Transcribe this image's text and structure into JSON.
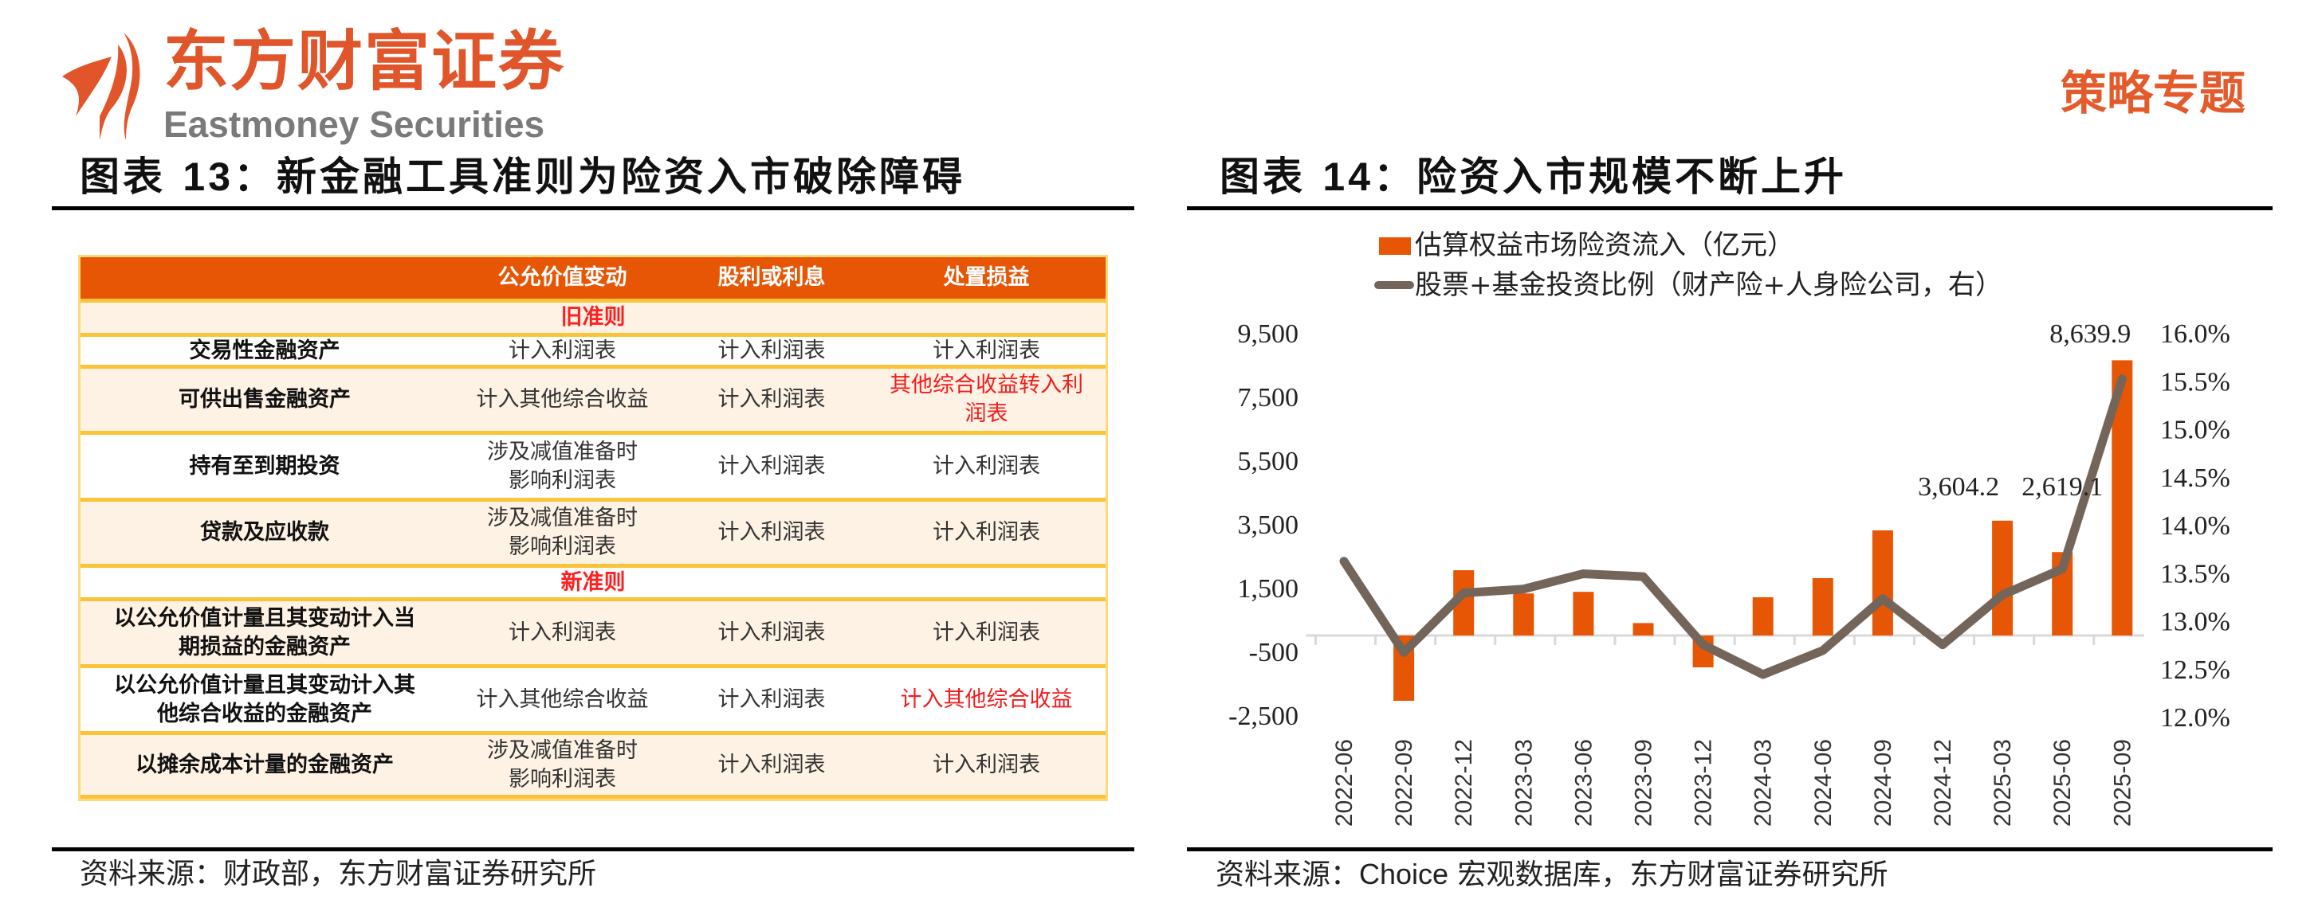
{
  "header": {
    "brand_cn": "东方财富证券",
    "brand_en": "Eastmoney Securities",
    "section_tag": "策略专题",
    "brand_color": "#E0552A"
  },
  "figure13": {
    "title_prefix": "图表 ",
    "title_num": "13",
    "title_text": "：新金融工具准则为险资入市破除障碍",
    "source": "资料来源：财政部，东方财富证券研究所",
    "table": {
      "headers": [
        "",
        "公允价值变动",
        "股利或利息",
        "处置损益"
      ],
      "sections": [
        {
          "label": "旧准则",
          "rows": [
            {
              "asset": "交易性金融资产",
              "fv_change": "计入利润表",
              "dividend_interest": "计入利润表",
              "disposal": "计入利润表",
              "disposal_highlight": false
            },
            {
              "asset": "可供出售金融资产",
              "fv_change": "计入其他综合收益",
              "dividend_interest": "计入利润表",
              "disposal": "其他综合收益转入利润表",
              "disposal_highlight": true
            },
            {
              "asset": "持有至到期投资",
              "fv_change": "涉及减值准备时影响利润表",
              "dividend_interest": "计入利润表",
              "disposal": "计入利润表",
              "disposal_highlight": false
            },
            {
              "asset": "贷款及应收款",
              "fv_change": "涉及减值准备时影响利润表",
              "dividend_interest": "计入利润表",
              "disposal": "计入利润表",
              "disposal_highlight": false
            }
          ]
        },
        {
          "label": "新准则",
          "rows": [
            {
              "asset": "以公允价值计量且其变动计入当期损益的金融资产",
              "fv_change": "计入利润表",
              "dividend_interest": "计入利润表",
              "disposal": "计入利润表",
              "disposal_highlight": false
            },
            {
              "asset": "以公允价值计量且其变动计入其他综合收益的金融资产",
              "fv_change": "计入其他综合收益",
              "dividend_interest": "计入利润表",
              "disposal": "计入其他综合收益",
              "disposal_highlight": true
            },
            {
              "asset": "以摊余成本计量的金融资产",
              "fv_change": "涉及减值准备时影响利润表",
              "dividend_interest": "计入利润表",
              "disposal": "计入利润表",
              "disposal_highlight": false
            }
          ]
        }
      ]
    }
  },
  "figure14": {
    "title_prefix": "图表 ",
    "title_num": "14",
    "title_text": "：险资入市规模不断上升",
    "source_prefix": "资料来源：",
    "source_latin": "Choice",
    "source_rest": " 宏观数据库，东方财富证券研究所"
  },
  "chart_data": {
    "type": "bar",
    "title": "险资入市规模不断上升",
    "categories": [
      "2022-06",
      "2022-09",
      "2022-12",
      "2023-03",
      "2023-06",
      "2023-09",
      "2023-12",
      "2024-03",
      "2024-06",
      "2024-09",
      "2024-12",
      "2025-03",
      "2025-06",
      "2025-09"
    ],
    "series": [
      {
        "name": "估算权益市场险资流入（亿元）",
        "type": "bar",
        "axis": "left",
        "color": "#E65604",
        "values": [
          0,
          -2050,
          2050,
          1320,
          1370,
          390,
          -1000,
          1200,
          1800,
          3300,
          0,
          3604.2,
          2619.1,
          8639.9
        ]
      },
      {
        "name": "股票+基金投资比例（财产险+人身险公司，右）",
        "type": "line",
        "axis": "right",
        "color": "#74655A",
        "values": [
          13.62,
          12.67,
          13.29,
          13.33,
          13.49,
          13.46,
          12.75,
          12.44,
          12.69,
          13.23,
          12.75,
          13.27,
          13.54,
          15.52
        ]
      }
    ],
    "data_labels": [
      {
        "category": "2025-03",
        "text": "3,604.2"
      },
      {
        "category": "2025-06",
        "text": "2,619.1"
      },
      {
        "category": "2025-09",
        "text": "8,639.9"
      }
    ],
    "left_axis": {
      "ticks": [
        "9,500",
        "7,500",
        "5,500",
        "3,500",
        "1,500",
        "-500",
        "-2,500"
      ],
      "ylim": [
        -2500,
        9500
      ]
    },
    "right_axis": {
      "ticks": [
        "16.0%",
        "15.5%",
        "15.0%",
        "14.5%",
        "14.0%",
        "13.5%",
        "13.0%",
        "12.5%",
        "12.0%"
      ],
      "ylim": [
        12.0,
        16.0
      ]
    },
    "xlabel": "",
    "ylabel": "",
    "legend_position": "top",
    "grid": false
  }
}
